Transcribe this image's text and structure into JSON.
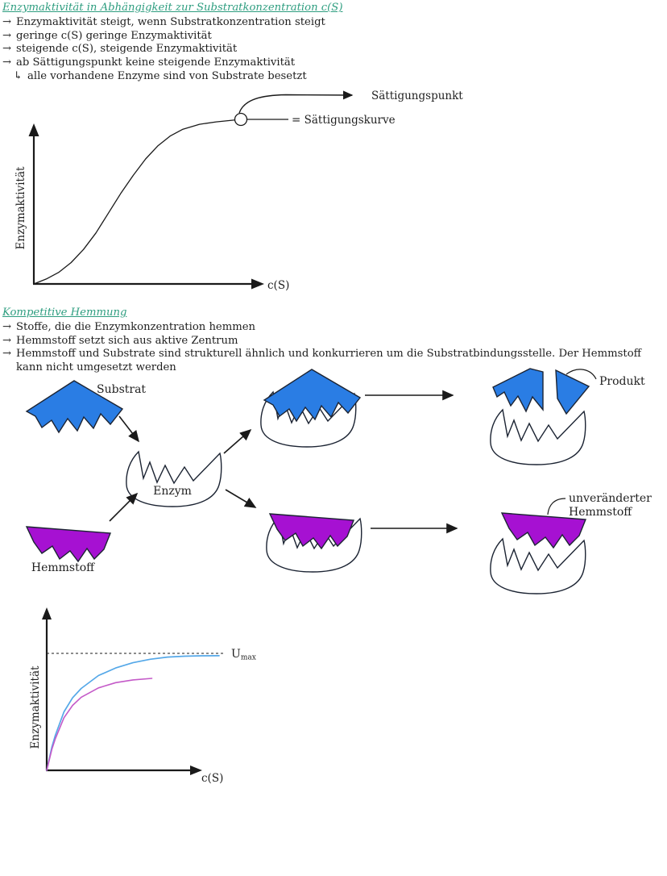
{
  "colors": {
    "heading_teal": "#2f9e80",
    "text": "#1f1f1f",
    "substrate_blue": "#2a7de4",
    "inhibitor_purple": "#a611d2",
    "shape_outline": "#1c2433",
    "curve_blue": "#55a8e8",
    "curve_magenta": "#c45ac8",
    "axis_black": "#1a1a1a"
  },
  "section1": {
    "title": "Enzymaktivität in Abhängigkeit zur Substratkonzentration c(S)",
    "bullets": [
      {
        "marker": "→",
        "text": "Enzymaktivität steigt, wenn Substratkonzentration steigt"
      },
      {
        "marker": "→",
        "text": "geringe c(S) geringe Enzymaktivität"
      },
      {
        "marker": "→",
        "text": "steigende c(S), steigende Enzymaktivität"
      },
      {
        "marker": "→",
        "text": "ab Sättigungspunkt keine steigende Enzymaktivität"
      },
      {
        "marker": "↳",
        "text": "alle vorhandene Enzyme sind von Substrate besetzt"
      }
    ]
  },
  "section2": {
    "title": "Kompetitive Hemmung",
    "bullets": [
      {
        "marker": "→",
        "text": "Stoffe, die die Enzymkonzentration hemmen"
      },
      {
        "marker": "→",
        "text": "Hemmstoff setzt sich aus aktive Zentrum"
      },
      {
        "marker": "→",
        "text": "Hemmstoff und Substrate sind strukturell ähnlich und konkurrieren um die Substratbindungsstelle. Der Hemmstoff kann nicht umgesetzt werden"
      }
    ]
  },
  "diagram": {
    "labels": {
      "substrat": "Substrat",
      "hemmstoff": "Hemmstoff",
      "enzym": "Enzym",
      "produkt": "Produkt",
      "unveraendert_line1": "unveränderter",
      "unveraendert_line2": "Hemmstoff"
    }
  },
  "chart_data": [
    {
      "type": "line",
      "title": "",
      "xlabel": "c(S)",
      "ylabel": "Enzymaktivität",
      "axes_quantified": false,
      "grid": false,
      "annotations": [
        {
          "text": "Sättigungspunkt",
          "target": "end of curve plateau"
        },
        {
          "text": "= Sättigungskurve",
          "target": "circled point on plateau"
        }
      ],
      "series": [
        {
          "name": "Sättigungskurve",
          "points": [
            [
              0,
              0
            ],
            [
              0.06,
              0.03
            ],
            [
              0.12,
              0.07
            ],
            [
              0.18,
              0.13
            ],
            [
              0.24,
              0.21
            ],
            [
              0.3,
              0.31
            ],
            [
              0.36,
              0.43
            ],
            [
              0.42,
              0.55
            ],
            [
              0.48,
              0.66
            ],
            [
              0.54,
              0.76
            ],
            [
              0.6,
              0.84
            ],
            [
              0.66,
              0.9
            ],
            [
              0.72,
              0.94
            ],
            [
              0.8,
              0.97
            ],
            [
              0.88,
              0.985
            ],
            [
              1.0,
              1.0
            ]
          ]
        }
      ]
    },
    {
      "type": "line",
      "title": "",
      "xlabel": "c(S)",
      "ylabel": "Enzymaktivität",
      "axes_quantified": false,
      "grid": false,
      "reference_line": {
        "style": "dashed",
        "label_main": "U",
        "label_sub": "max",
        "level": 1.0
      },
      "series": [
        {
          "name": "blue-curve (ohne Hemmstoff, erreicht Umax)",
          "color_key": "curve_blue",
          "points": [
            [
              0,
              0
            ],
            [
              0.03,
              0.2
            ],
            [
              0.05,
              0.3
            ],
            [
              0.1,
              0.5
            ],
            [
              0.15,
              0.62
            ],
            [
              0.2,
              0.7
            ],
            [
              0.3,
              0.81
            ],
            [
              0.4,
              0.875
            ],
            [
              0.5,
              0.92
            ],
            [
              0.6,
              0.95
            ],
            [
              0.7,
              0.968
            ],
            [
              0.8,
              0.976
            ],
            [
              0.9,
              0.979
            ],
            [
              1.0,
              0.98
            ]
          ]
        },
        {
          "name": "magenta-curve (bleibt unter Umax)",
          "color_key": "curve_magenta",
          "points": [
            [
              0,
              0
            ],
            [
              0.03,
              0.18
            ],
            [
              0.05,
              0.27
            ],
            [
              0.1,
              0.45
            ],
            [
              0.15,
              0.555
            ],
            [
              0.2,
              0.625
            ],
            [
              0.3,
              0.705
            ],
            [
              0.4,
              0.75
            ],
            [
              0.5,
              0.773
            ],
            [
              0.61,
              0.786
            ]
          ]
        }
      ]
    }
  ],
  "umax": {
    "u": "U",
    "sub": "max"
  }
}
